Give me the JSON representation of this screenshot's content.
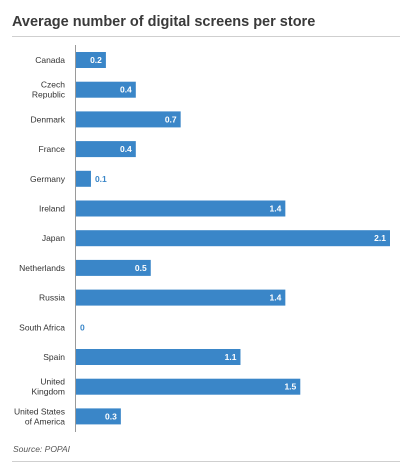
{
  "header": {
    "title": "Average number of digital screens per store"
  },
  "footer": {
    "source": "Source: POPAI"
  },
  "colors": {
    "bar": "#3a86c8",
    "axis": "#9a9a9a",
    "label_outside": "#3a86c8"
  },
  "chart_data": {
    "type": "bar",
    "orientation": "horizontal",
    "title": "Average number of digital screens per store",
    "categories": [
      [
        "Canada"
      ],
      [
        "Czech",
        "Republic"
      ],
      [
        "Denmark"
      ],
      [
        "France"
      ],
      [
        "Germany"
      ],
      [
        "Ireland"
      ],
      [
        "Japan"
      ],
      [
        "Netherlands"
      ],
      [
        "Russia"
      ],
      [
        "South Africa"
      ],
      [
        "Spain"
      ],
      [
        "United",
        "Kingdom"
      ],
      [
        "United States",
        "of America"
      ]
    ],
    "values": [
      0.2,
      0.4,
      0.7,
      0.4,
      0.1,
      1.4,
      2.1,
      0.5,
      1.4,
      0,
      1.1,
      1.5,
      0.3
    ],
    "labels": [
      "0.2",
      "0.4",
      "0.7",
      "0.4",
      "0.1",
      "1.4",
      "2.1",
      "0.5",
      "1.4",
      "0",
      "1.1",
      "1.5",
      "0.3"
    ],
    "xlim": [
      0,
      2.1
    ],
    "grid": false,
    "legend": "none",
    "source": "Source: POPAI"
  }
}
